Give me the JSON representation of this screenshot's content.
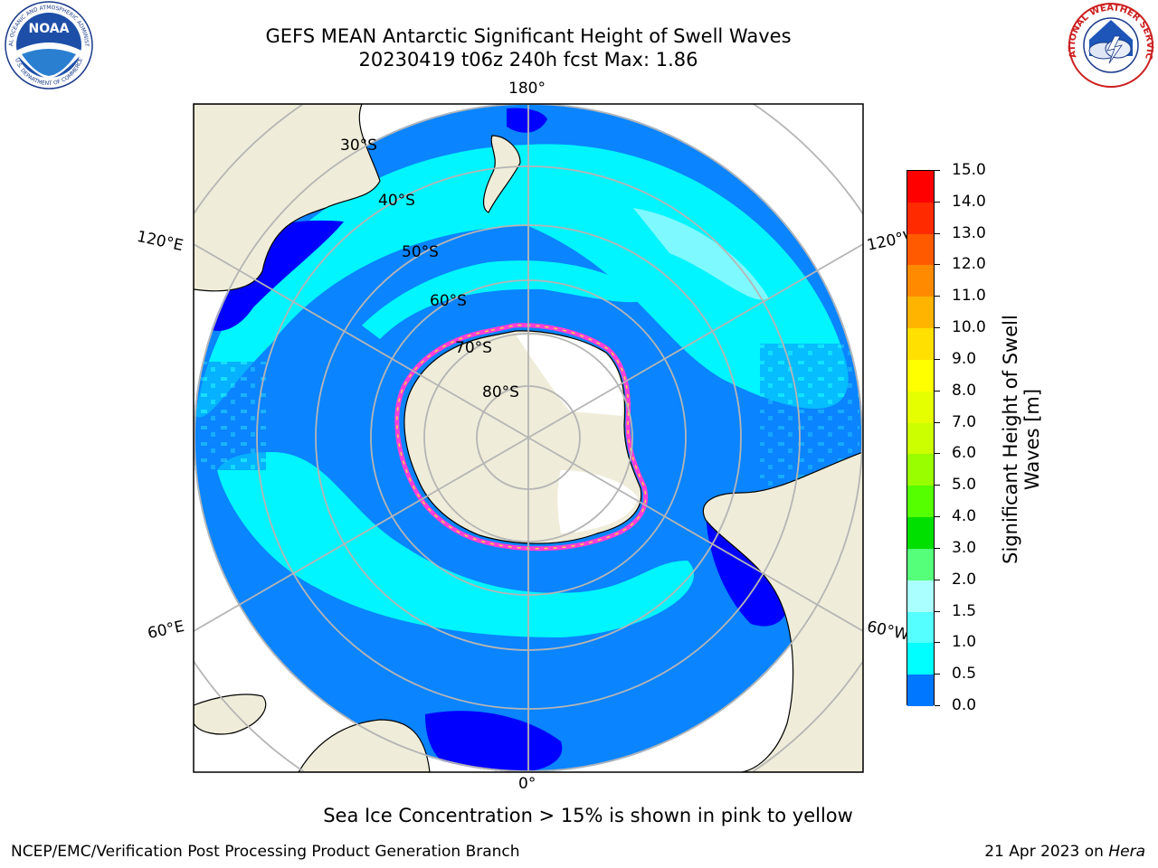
{
  "title": {
    "line1": "GEFS MEAN Antarctic Significant Height of Swell Waves",
    "line2": "20230419 t06z 240h fcst   Max: 1.86"
  },
  "map": {
    "projection": "south-polar-stereographic",
    "lon_labels": {
      "l180": "180°",
      "l0": "0°",
      "l120e": "120°E",
      "l60e": "60°E",
      "l120w": "120°W",
      "l60w": "60°W"
    },
    "lat_labels": {
      "l30": "30°S",
      "l40": "40°S",
      "l50": "50°S",
      "l60": "60°S",
      "l70": "70°S",
      "l80": "80°S"
    },
    "colors": {
      "land": "#efedd9",
      "ice_edge_pink": "#ff3fd6",
      "ice_edge_yellow": "#ffd24a",
      "grid": "#b5b5b5"
    }
  },
  "colorbar": {
    "title": "Significant Height of Swell Waves [m]",
    "labels": [
      "15.0",
      "14.0",
      "13.0",
      "12.0",
      "11.0",
      "10.0",
      "9.0",
      "8.0",
      "7.0",
      "6.0",
      "5.0",
      "4.0",
      "3.0",
      "2.0",
      "1.5",
      "1.0",
      "0.5",
      "0.0"
    ],
    "colors": [
      "#ff0000",
      "#ff2a00",
      "#ff5a00",
      "#ff8a00",
      "#ffb400",
      "#ffe000",
      "#ffff00",
      "#e6ff00",
      "#ccff00",
      "#99ff00",
      "#55ff00",
      "#00e000",
      "#55ff7a",
      "#aaffff",
      "#55ffff",
      "#00ffff",
      "#0077ff",
      "#0000ff"
    ]
  },
  "note": "Sea Ice Concentration > 15% is shown in pink to yellow",
  "footer": {
    "left": "NCEP/EMC/Verification Post Processing Product Generation Branch",
    "right_prefix": "21 Apr 2023 on ",
    "right_machine": "Hera"
  },
  "logos": {
    "noaa_text": "NOAA",
    "noaa_ring_top": "NATIONAL OCEANIC AND ATMOSPHERIC ADMINISTRATION",
    "noaa_ring_bottom": "U.S. DEPARTMENT OF COMMERCE",
    "nws_ring": "NATIONAL WEATHER SERVICE"
  }
}
